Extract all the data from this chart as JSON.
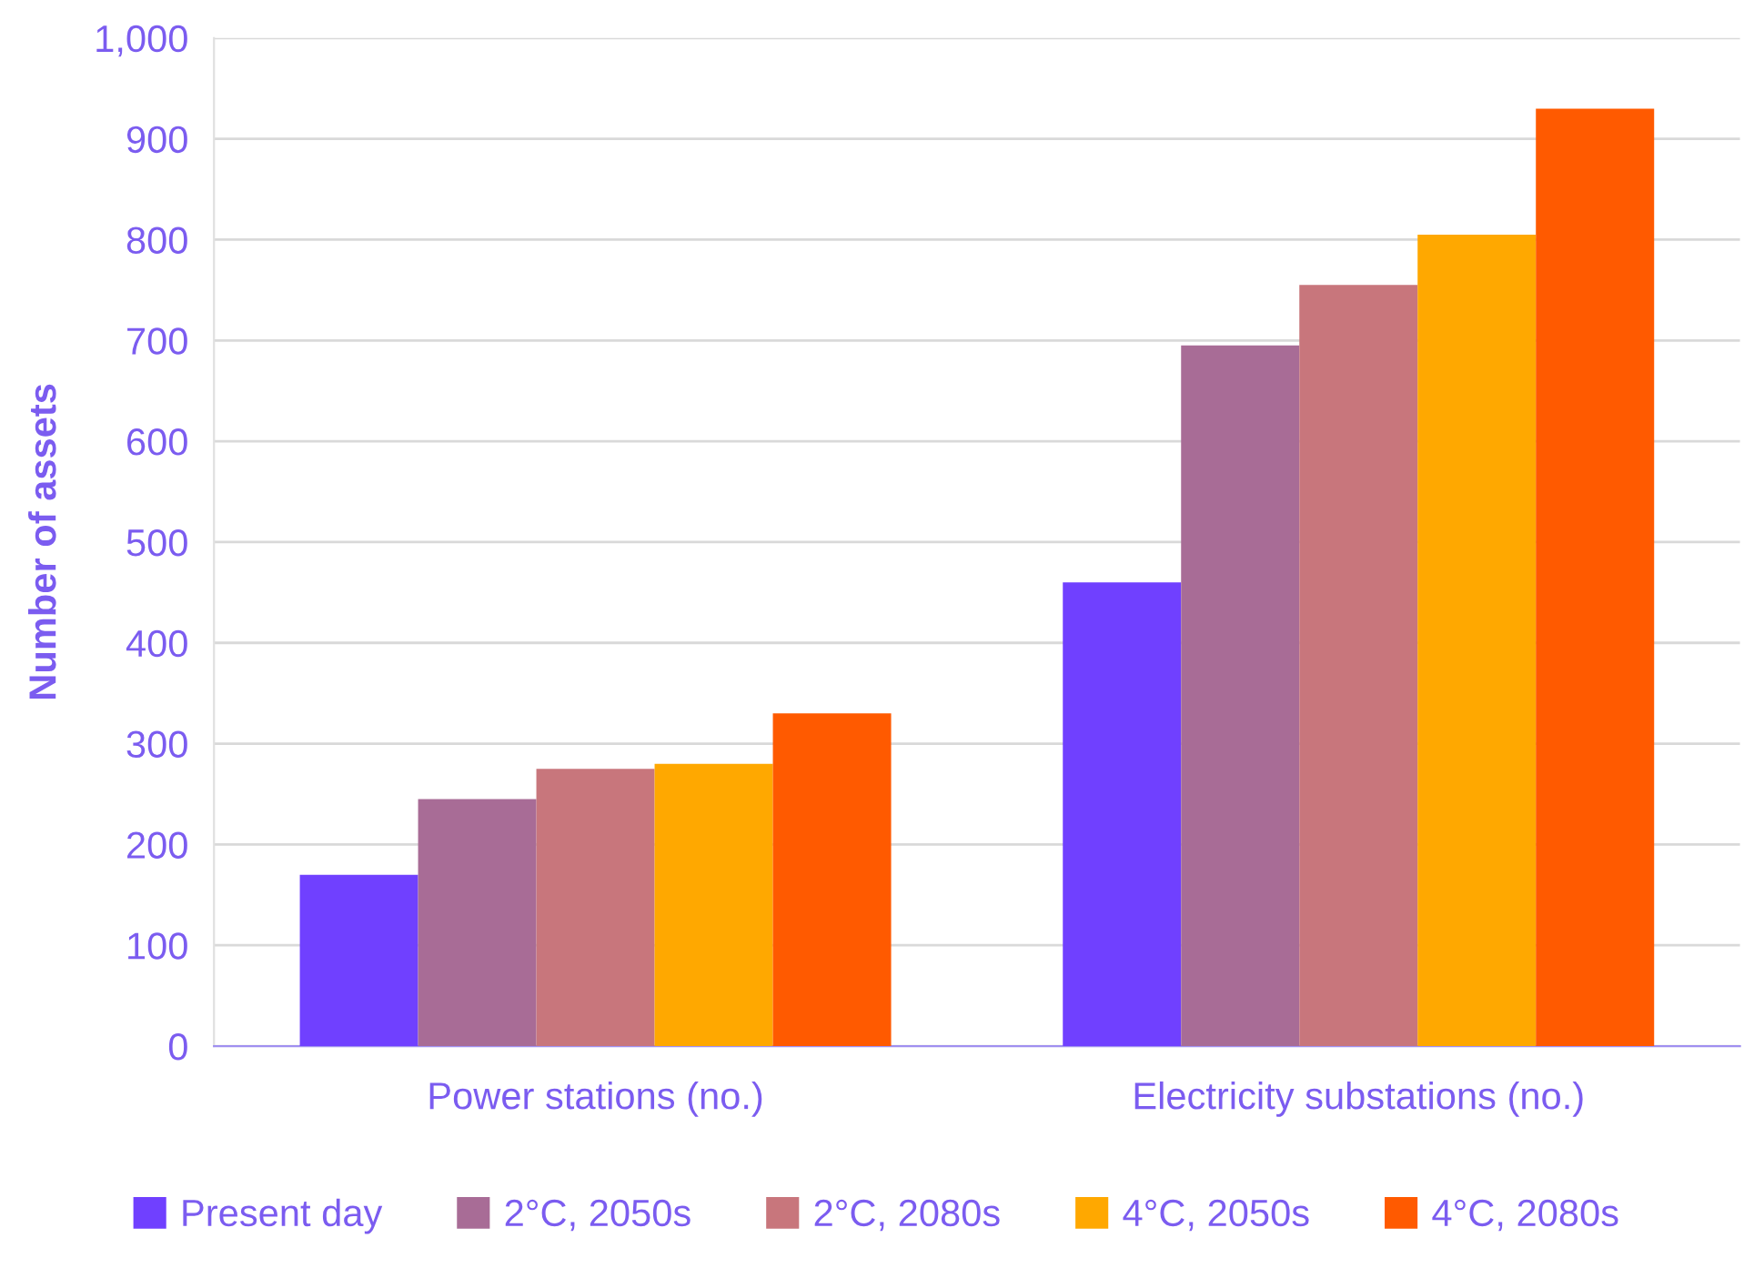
{
  "chart_data": {
    "type": "bar",
    "ylabel": "Number of assets",
    "categories": [
      "Power stations (no.)",
      "Electricity substations (no.)"
    ],
    "series": [
      {
        "name": "Present day",
        "color": "#7040ff",
        "values": [
          170,
          460
        ]
      },
      {
        "name": "2°C, 2050s",
        "color": "#a86c96",
        "values": [
          245,
          695
        ]
      },
      {
        "name": "2°C, 2080s",
        "color": "#c8767c",
        "values": [
          275,
          755
        ]
      },
      {
        "name": "4°C, 2050s",
        "color": "#ffa800",
        "values": [
          280,
          805
        ]
      },
      {
        "name": "4°C, 2080s",
        "color": "#ff5a00",
        "values": [
          330,
          930
        ]
      }
    ],
    "ylim": [
      0,
      1000
    ],
    "yticks": [
      0,
      100,
      200,
      300,
      400,
      500,
      600,
      700,
      800,
      900,
      {
        "value": 1000,
        "label": "1,000"
      }
    ],
    "grid": "y",
    "legend": "bottom"
  }
}
